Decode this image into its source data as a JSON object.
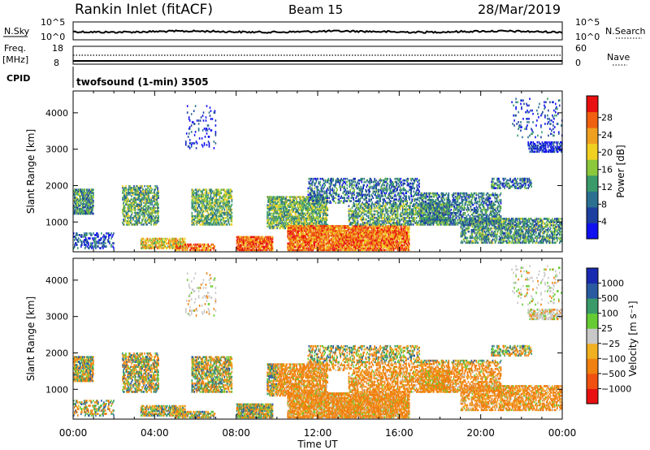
{
  "header": {
    "station": "Rankin Inlet (fitACF)",
    "beam": "Beam 15",
    "date": "28/Mar/2019"
  },
  "top_panels": {
    "nsky_label": "N.Sky",
    "nsky_ticks": [
      "10^5",
      "10^0"
    ],
    "nsearch_label": "N.Search",
    "nsearch_ticks": [
      "10^5",
      "10^0"
    ],
    "freq_label": "Freq.",
    "freq_unit": "[MHz]",
    "freq_ticks": [
      "18",
      "8"
    ],
    "nave_label": "Nave",
    "nave_ticks": [
      "60",
      "0"
    ],
    "cpid_label": "CPID",
    "cpid_text": "twofsound (1-min) 3505"
  },
  "x_axis": {
    "label": "Time UT",
    "ticks": [
      "00:00",
      "04:00",
      "08:00",
      "12:00",
      "16:00",
      "20:00",
      "00:00"
    ]
  },
  "colors": {
    "power": [
      "#1010f0",
      "#1d3fa0",
      "#2b7090",
      "#3a9a6a",
      "#8cc83c",
      "#f0d020",
      "#f0a020",
      "#f06010",
      "#e81010"
    ],
    "velocity": [
      "#e81010",
      "#f05010",
      "#f08010",
      "#f0b020",
      "#c8c8c8",
      "#66cc33",
      "#3a9a6a",
      "#2a5aa0",
      "#1a2ab0"
    ]
  },
  "chart_data": [
    {
      "type": "heatmap",
      "ylabel": "Slant Range [km]",
      "yticks": [
        "1000",
        "2000",
        "3000",
        "4000"
      ],
      "colorbar_label": "Power [dB]",
      "colorbar_ticks": [
        "4",
        "8",
        "12",
        "16",
        "20",
        "24",
        "28"
      ],
      "x": [
        "00:00",
        "04:00",
        "08:00",
        "12:00",
        "16:00",
        "20:00",
        "00:00"
      ],
      "ylim": [
        180,
        4600
      ],
      "colorbar_range": [
        0,
        32
      ]
    },
    {
      "type": "heatmap",
      "ylabel": "Slant Range [km]",
      "yticks": [
        "1000",
        "2000",
        "3000",
        "4000"
      ],
      "colorbar_label": "Velocity [m s⁻¹]",
      "colorbar_ticks": [
        "1000",
        "500",
        "100",
        "25",
        "−25",
        "−100",
        "−500",
        "−1000"
      ],
      "x": [
        "00:00",
        "04:00",
        "08:00",
        "12:00",
        "16:00",
        "20:00",
        "00:00"
      ],
      "ylim": [
        180,
        4600
      ]
    }
  ]
}
